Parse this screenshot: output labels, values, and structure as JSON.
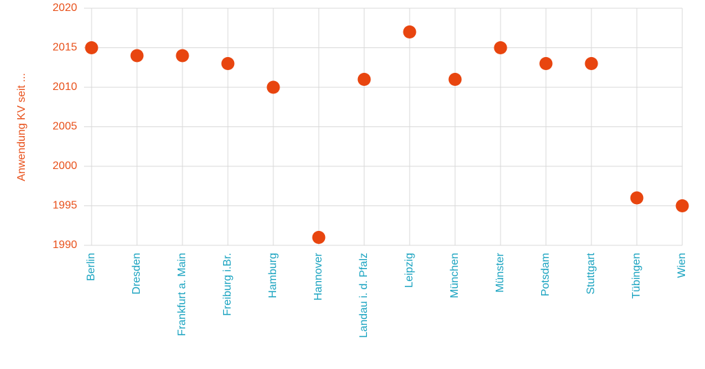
{
  "chart_data": {
    "type": "scatter",
    "y_label": "Anwendung KV seit ...",
    "categories": [
      "Berlin",
      "Dresden",
      "Frankfurt a. Main",
      "Freiburg i.Br.",
      "Hamburg",
      "Hannover",
      "Landau i. d. Pfalz",
      "Leipzig",
      "München",
      "Münster",
      "Potsdam",
      "Stuttgart",
      "Tübingen",
      "Wien"
    ],
    "values": [
      2015,
      2014,
      2014,
      2013,
      2010,
      1991,
      2011,
      2017,
      2011,
      2015,
      2013,
      2013,
      1996,
      1995
    ],
    "color": "#e8450f",
    "ylim": [
      1990,
      2020
    ],
    "yticks": [
      1990,
      1995,
      2000,
      2005,
      2010,
      2015,
      2020
    ],
    "grid": true
  }
}
